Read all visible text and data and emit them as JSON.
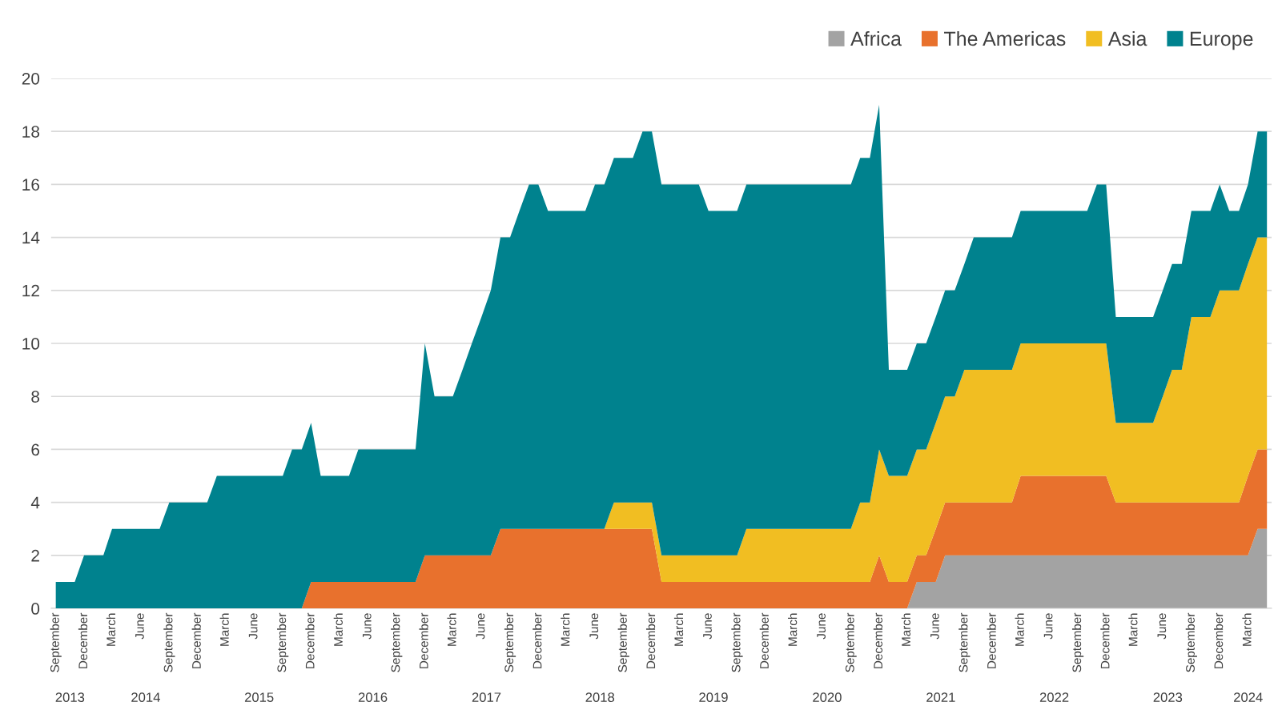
{
  "chart_data": {
    "type": "area",
    "stacked": true,
    "x": [
      "2013-09",
      "2013-10",
      "2013-11",
      "2013-12",
      "2014-01",
      "2014-02",
      "2014-03",
      "2014-04",
      "2014-05",
      "2014-06",
      "2014-07",
      "2014-08",
      "2014-09",
      "2014-10",
      "2014-11",
      "2014-12",
      "2015-01",
      "2015-02",
      "2015-03",
      "2015-04",
      "2015-05",
      "2015-06",
      "2015-07",
      "2015-08",
      "2015-09",
      "2015-10",
      "2015-11",
      "2015-12",
      "2016-01",
      "2016-02",
      "2016-03",
      "2016-04",
      "2016-05",
      "2016-06",
      "2016-07",
      "2016-08",
      "2016-09",
      "2016-10",
      "2016-11",
      "2016-12",
      "2017-01",
      "2017-02",
      "2017-03",
      "2017-04",
      "2017-05",
      "2017-06",
      "2017-07",
      "2017-08",
      "2017-09",
      "2017-10",
      "2017-11",
      "2017-12",
      "2018-01",
      "2018-02",
      "2018-03",
      "2018-04",
      "2018-05",
      "2018-06",
      "2018-07",
      "2018-08",
      "2018-09",
      "2018-10",
      "2018-11",
      "2018-12",
      "2019-01",
      "2019-02",
      "2019-03",
      "2019-04",
      "2019-05",
      "2019-06",
      "2019-07",
      "2019-08",
      "2019-09",
      "2019-10",
      "2019-11",
      "2019-12",
      "2020-01",
      "2020-02",
      "2020-03",
      "2020-04",
      "2020-05",
      "2020-06",
      "2020-07",
      "2020-08",
      "2020-09",
      "2020-10",
      "2020-11",
      "2020-12",
      "2021-01",
      "2021-02",
      "2021-03",
      "2021-04",
      "2021-05",
      "2021-06",
      "2021-07",
      "2021-08",
      "2021-09",
      "2021-10",
      "2021-11",
      "2021-12",
      "2022-01",
      "2022-02",
      "2022-03",
      "2022-04",
      "2022-05",
      "2022-06",
      "2022-07",
      "2022-08",
      "2022-09",
      "2022-10",
      "2022-11",
      "2022-12",
      "2023-01",
      "2023-02",
      "2023-03",
      "2023-04",
      "2023-05",
      "2023-06",
      "2023-07",
      "2023-08",
      "2023-09",
      "2023-10",
      "2023-11",
      "2023-12",
      "2024-01",
      "2024-02",
      "2024-03",
      "2024-04",
      "2024-05"
    ],
    "series": [
      {
        "name": "Africa",
        "color": "#a3a3a3",
        "values": [
          0,
          0,
          0,
          0,
          0,
          0,
          0,
          0,
          0,
          0,
          0,
          0,
          0,
          0,
          0,
          0,
          0,
          0,
          0,
          0,
          0,
          0,
          0,
          0,
          0,
          0,
          0,
          0,
          0,
          0,
          0,
          0,
          0,
          0,
          0,
          0,
          0,
          0,
          0,
          0,
          0,
          0,
          0,
          0,
          0,
          0,
          0,
          0,
          0,
          0,
          0,
          0,
          0,
          0,
          0,
          0,
          0,
          0,
          0,
          0,
          0,
          0,
          0,
          0,
          0,
          0,
          0,
          0,
          0,
          0,
          0,
          0,
          0,
          0,
          0,
          0,
          0,
          0,
          0,
          0,
          0,
          0,
          0,
          0,
          0,
          0,
          0,
          0,
          0,
          0,
          0,
          1,
          1,
          1,
          2,
          2,
          2,
          2,
          2,
          2,
          2,
          2,
          2,
          2,
          2,
          2,
          2,
          2,
          2,
          2,
          2,
          2,
          2,
          2,
          2,
          2,
          2,
          2,
          2,
          2,
          2,
          2,
          2,
          2,
          2,
          2,
          2,
          3,
          3
        ]
      },
      {
        "name": "The Americas",
        "color": "#e8712d",
        "values": [
          0,
          0,
          0,
          0,
          0,
          0,
          0,
          0,
          0,
          0,
          0,
          0,
          0,
          0,
          0,
          0,
          0,
          0,
          0,
          0,
          0,
          0,
          0,
          0,
          0,
          0,
          0,
          1,
          1,
          1,
          1,
          1,
          1,
          1,
          1,
          1,
          1,
          1,
          1,
          2,
          2,
          2,
          2,
          2,
          2,
          2,
          2,
          3,
          3,
          3,
          3,
          3,
          3,
          3,
          3,
          3,
          3,
          3,
          3,
          3,
          3,
          3,
          3,
          3,
          1,
          1,
          1,
          1,
          1,
          1,
          1,
          1,
          1,
          1,
          1,
          1,
          1,
          1,
          1,
          1,
          1,
          1,
          1,
          1,
          1,
          1,
          1,
          2,
          1,
          1,
          1,
          1,
          1,
          2,
          2,
          2,
          2,
          2,
          2,
          2,
          2,
          2,
          3,
          3,
          3,
          3,
          3,
          3,
          3,
          3,
          3,
          3,
          2,
          2,
          2,
          2,
          2,
          2,
          2,
          2,
          2,
          2,
          2,
          2,
          2,
          2,
          3,
          3,
          3
        ]
      },
      {
        "name": "Asia",
        "color": "#f1be22",
        "values": [
          0,
          0,
          0,
          0,
          0,
          0,
          0,
          0,
          0,
          0,
          0,
          0,
          0,
          0,
          0,
          0,
          0,
          0,
          0,
          0,
          0,
          0,
          0,
          0,
          0,
          0,
          0,
          0,
          0,
          0,
          0,
          0,
          0,
          0,
          0,
          0,
          0,
          0,
          0,
          0,
          0,
          0,
          0,
          0,
          0,
          0,
          0,
          0,
          0,
          0,
          0,
          0,
          0,
          0,
          0,
          0,
          0,
          0,
          0,
          1,
          1,
          1,
          1,
          1,
          1,
          1,
          1,
          1,
          1,
          1,
          1,
          1,
          1,
          2,
          2,
          2,
          2,
          2,
          2,
          2,
          2,
          2,
          2,
          2,
          2,
          3,
          3,
          4,
          4,
          4,
          4,
          4,
          4,
          4,
          4,
          4,
          5,
          5,
          5,
          5,
          5,
          5,
          5,
          5,
          5,
          5,
          5,
          5,
          5,
          5,
          5,
          5,
          3,
          3,
          3,
          3,
          3,
          4,
          5,
          5,
          7,
          7,
          7,
          8,
          8,
          8,
          8,
          8,
          8
        ]
      },
      {
        "name": "Europe",
        "color": "#00828e",
        "values": [
          1,
          1,
          1,
          2,
          2,
          2,
          3,
          3,
          3,
          3,
          3,
          3,
          4,
          4,
          4,
          4,
          4,
          5,
          5,
          5,
          5,
          5,
          5,
          5,
          5,
          6,
          6,
          6,
          4,
          4,
          4,
          4,
          5,
          5,
          5,
          5,
          5,
          5,
          5,
          8,
          6,
          6,
          6,
          7,
          8,
          9,
          10,
          11,
          11,
          12,
          13,
          13,
          12,
          12,
          12,
          12,
          12,
          13,
          13,
          13,
          13,
          13,
          14,
          14,
          14,
          14,
          14,
          14,
          14,
          13,
          13,
          13,
          13,
          13,
          13,
          13,
          13,
          13,
          13,
          13,
          13,
          13,
          13,
          13,
          13,
          13,
          13,
          13,
          4,
          4,
          4,
          4,
          4,
          4,
          4,
          4,
          4,
          5,
          5,
          5,
          5,
          5,
          5,
          5,
          5,
          5,
          5,
          5,
          5,
          5,
          6,
          6,
          4,
          4,
          4,
          4,
          4,
          4,
          4,
          4,
          4,
          4,
          4,
          4,
          3,
          3,
          3,
          4,
          4
        ]
      }
    ],
    "xlim": [
      "2013-08-17",
      "2024-05-16"
    ],
    "xticks": [
      {
        "value": "2013-09",
        "label": "September"
      },
      {
        "value": "2013-12",
        "label": "December"
      },
      {
        "value": "2014-03",
        "label": "March"
      },
      {
        "value": "2014-06",
        "label": "June"
      },
      {
        "value": "2014-09",
        "label": "September"
      },
      {
        "value": "2014-12",
        "label": "December"
      },
      {
        "value": "2015-03",
        "label": "March"
      },
      {
        "value": "2015-06",
        "label": "June"
      },
      {
        "value": "2015-09",
        "label": "September"
      },
      {
        "value": "2015-12",
        "label": "December"
      },
      {
        "value": "2016-03",
        "label": "March"
      },
      {
        "value": "2016-06",
        "label": "June"
      },
      {
        "value": "2016-09",
        "label": "September"
      },
      {
        "value": "2016-12",
        "label": "December"
      },
      {
        "value": "2017-03",
        "label": "March"
      },
      {
        "value": "2017-06",
        "label": "June"
      },
      {
        "value": "2017-09",
        "label": "September"
      },
      {
        "value": "2017-12",
        "label": "December"
      },
      {
        "value": "2018-03",
        "label": "March"
      },
      {
        "value": "2018-06",
        "label": "June"
      },
      {
        "value": "2018-09",
        "label": "September"
      },
      {
        "value": "2018-12",
        "label": "December"
      },
      {
        "value": "2019-03",
        "label": "March"
      },
      {
        "value": "2019-06",
        "label": "June"
      },
      {
        "value": "2019-09",
        "label": "September"
      },
      {
        "value": "2019-12",
        "label": "December"
      },
      {
        "value": "2020-03",
        "label": "March"
      },
      {
        "value": "2020-06",
        "label": "June"
      },
      {
        "value": "2020-09",
        "label": "September"
      },
      {
        "value": "2020-12",
        "label": "December"
      },
      {
        "value": "2021-03",
        "label": "March"
      },
      {
        "value": "2021-06",
        "label": "June"
      },
      {
        "value": "2021-09",
        "label": "September"
      },
      {
        "value": "2021-12",
        "label": "December"
      },
      {
        "value": "2022-03",
        "label": "March"
      },
      {
        "value": "2022-06",
        "label": "June"
      },
      {
        "value": "2022-09",
        "label": "September"
      },
      {
        "value": "2022-12",
        "label": "December"
      },
      {
        "value": "2023-03",
        "label": "March"
      },
      {
        "value": "2023-06",
        "label": "June"
      },
      {
        "value": "2023-09",
        "label": "September"
      },
      {
        "value": "2023-12",
        "label": "December"
      },
      {
        "value": "2024-03",
        "label": "March"
      }
    ],
    "annotations": [
      "2013",
      "2014",
      "2015",
      "2016",
      "2017",
      "2018",
      "2019",
      "2020",
      "2021",
      "2022",
      "2023",
      "2024"
    ],
    "ylim": [
      0,
      20
    ],
    "yticks": [
      0,
      2,
      4,
      6,
      8,
      10,
      12,
      14,
      16,
      18,
      20
    ],
    "grid": "y",
    "legend": "top right"
  }
}
